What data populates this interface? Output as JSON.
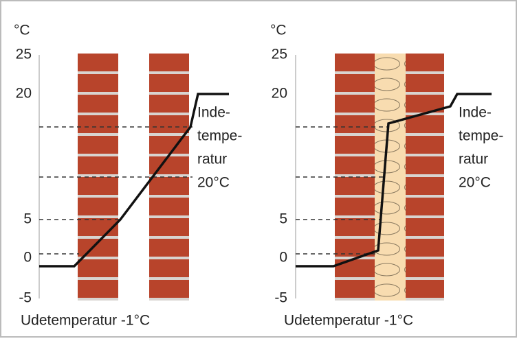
{
  "panels": [
    {
      "unit": "°C",
      "yticks": [
        "25",
        "20",
        "5",
        "0",
        "-5"
      ],
      "inside_label": [
        "Inde-",
        "tempe-",
        "ratur",
        "20°C"
      ],
      "outside_label": "Udetemperatur -1°C"
    },
    {
      "unit": "°C",
      "yticks": [
        "25",
        "20",
        "5",
        "0",
        "-5"
      ],
      "inside_label": [
        "Inde-",
        "tempe-",
        "ratur",
        "20°C"
      ],
      "outside_label": "Udetemperatur -1°C"
    }
  ]
}
